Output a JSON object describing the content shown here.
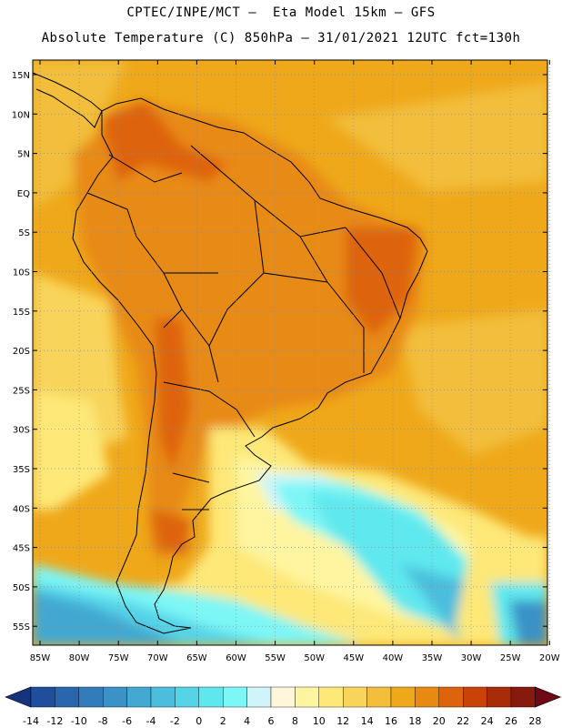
{
  "header": {
    "line1": "CPTEC/INPE/MCT –  Eta Model 15km – GFS",
    "line2": "Absolute Temperature (C) 850hPa – 31/01/2021 12UTC fct=130h"
  },
  "axes": {
    "lat_labels": [
      "15N",
      "10N",
      "5N",
      "EQ",
      "5S",
      "10S",
      "15S",
      "20S",
      "25S",
      "30S",
      "35S",
      "40S",
      "45S",
      "50S",
      "55S"
    ],
    "lon_labels": [
      "85W",
      "80W",
      "75W",
      "70W",
      "65W",
      "60W",
      "55W",
      "50W",
      "45W",
      "40W",
      "35W",
      "30W",
      "25W",
      "20W"
    ]
  },
  "colorbar": {
    "labels": [
      "-14",
      "-12",
      "-10",
      "-8",
      "-6",
      "-4",
      "-2",
      "0",
      "2",
      "4",
      "6",
      "8",
      "10",
      "12",
      "14",
      "16",
      "18",
      "20",
      "22",
      "24",
      "26",
      "28"
    ],
    "colors": [
      "#16337e",
      "#1f4e9c",
      "#2a66ad",
      "#337cbc",
      "#3b92c6",
      "#43a8d2",
      "#4cbedd",
      "#55d4e8",
      "#5ee8ee",
      "#7df6f6",
      "#cff5fb",
      "#fff6dc",
      "#fff5a0",
      "#fde878",
      "#f8d45a",
      "#f2be3b",
      "#efa81a",
      "#e88a12",
      "#de640c",
      "#c94208",
      "#a82c08",
      "#861a0c",
      "#6e0a16"
    ]
  }
}
